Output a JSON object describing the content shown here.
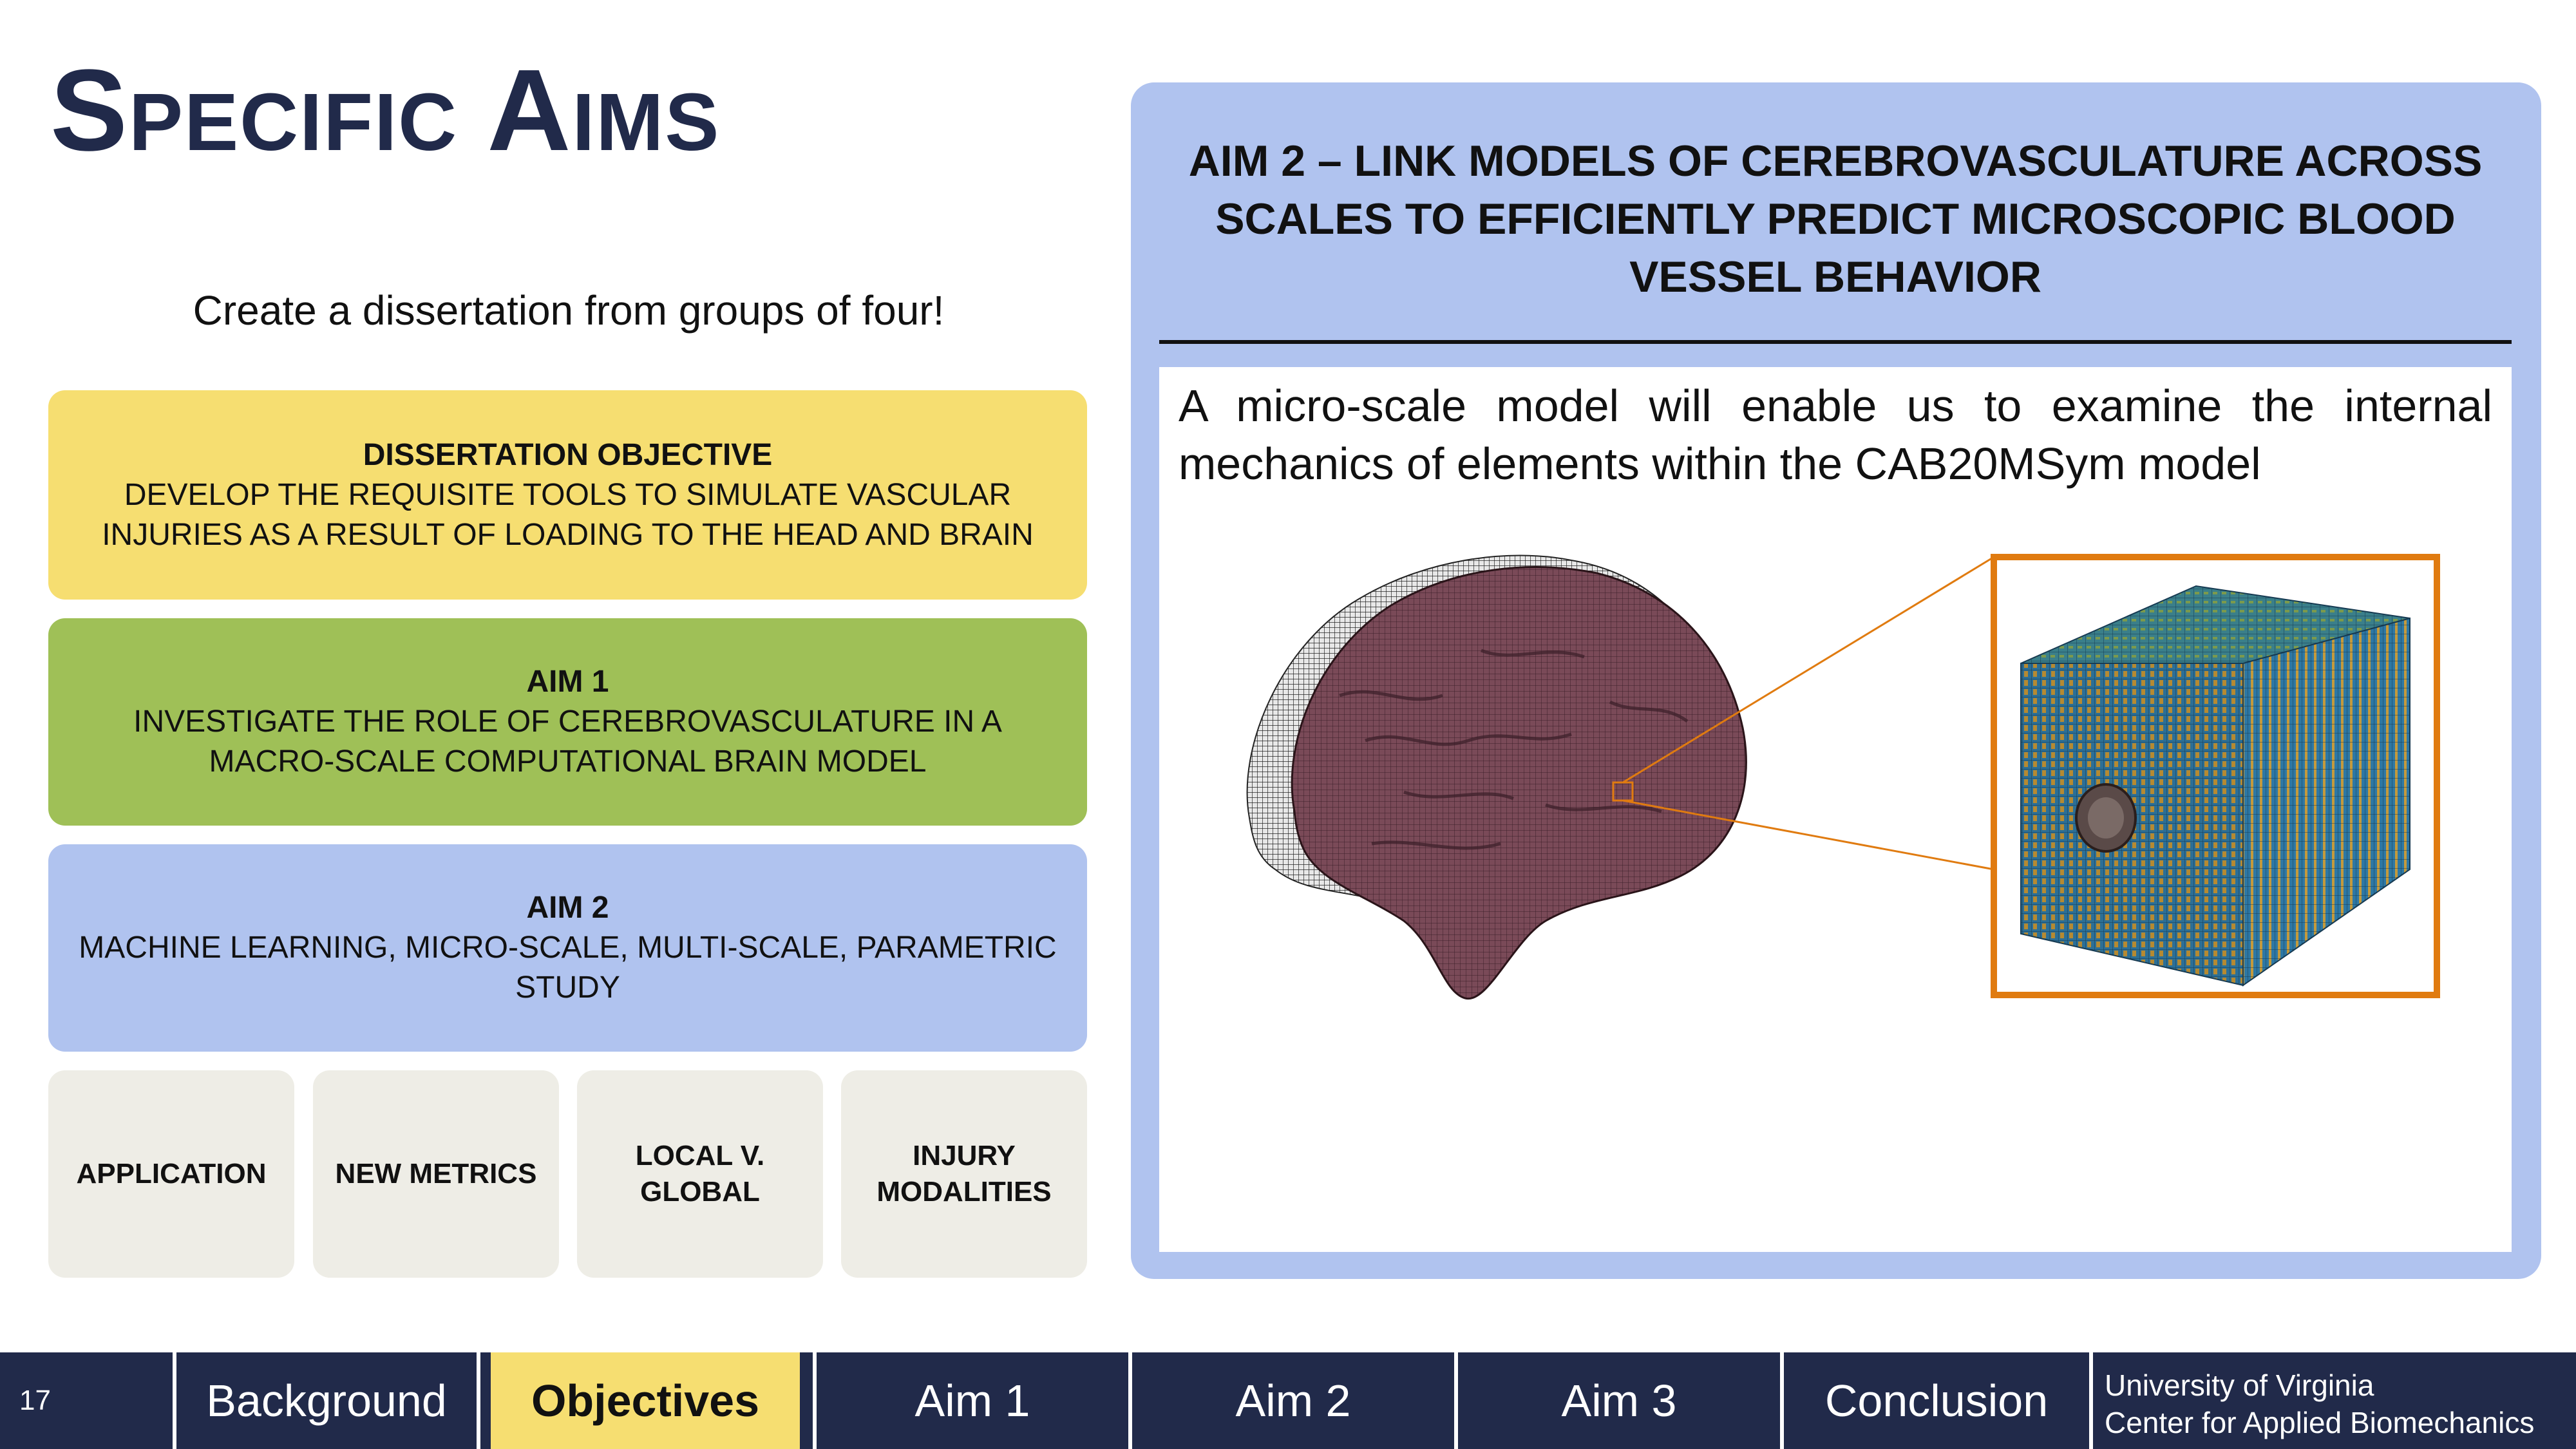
{
  "slide": {
    "title": "Specific Aims",
    "subtitle": "Create a dissertation from groups of four!",
    "page_number": "17"
  },
  "left_cards": [
    {
      "heading": "Dissertation Objective",
      "body": "Develop the requisite tools to simulate vascular injuries as a result of loading to the head and brain",
      "color": "#f6de71"
    },
    {
      "heading": "Aim 1",
      "body": "Investigate the role of cerebrovasculature in a macro-scale computational brain model",
      "color": "#9fc057"
    },
    {
      "heading": "Aim 2",
      "body": "Machine learning, micro-scale, multi-scale, parametric study",
      "color": "#b0c3ef"
    }
  ],
  "chips": [
    {
      "label": "APPLICATION"
    },
    {
      "label": "NEW METRICS"
    },
    {
      "label": "LOCAL V. GLOBAL"
    },
    {
      "label": "INJURY MODALITIES"
    }
  ],
  "right_panel": {
    "heading": "Aim 2 – Link models of cerebrovasculature across scales to efficiently predict microscopic blood vessel behavior",
    "description": "A micro-scale model will enable us to examine the internal mechanics of elements within the CAB20MSym model",
    "figure_icons": [
      "brain-mesh-icon",
      "micro-cube-mesh-icon"
    ]
  },
  "nav": {
    "items": [
      {
        "label": "Background",
        "active": false
      },
      {
        "label": "Objectives",
        "active": true
      },
      {
        "label": "Aim 1",
        "active": false
      },
      {
        "label": "Aim 2",
        "active": false
      },
      {
        "label": "Aim 3",
        "active": false
      },
      {
        "label": "Conclusion",
        "active": false
      }
    ],
    "affiliation_line1": "University of Virginia",
    "affiliation_line2": "Center for Applied Biomechanics"
  },
  "colors": {
    "navy": "#212a4a",
    "yellow": "#f6de71",
    "green": "#9fc057",
    "periwinkle": "#b0c3ef",
    "chip": "#eeede6",
    "orange": "#e07b10"
  }
}
